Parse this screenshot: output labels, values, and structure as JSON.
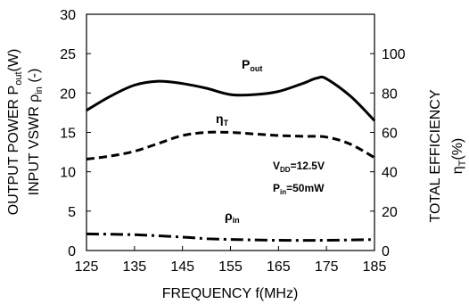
{
  "chart_data": {
    "type": "line",
    "x_axis": {
      "label_main": "FREQUENCY f(MHz)",
      "range": [
        125,
        185
      ],
      "ticks": [
        "125",
        "135",
        "145",
        "155",
        "165",
        "175",
        "185"
      ]
    },
    "y_axis_left": {
      "label_line1_prefix": "OUTPUT POWER P",
      "label_line1_sub": "out",
      "label_line1_suffix": "(W)",
      "label_line2_prefix": "INPUT VSWR ρ",
      "label_line2_sub": "in",
      "label_line2_suffix": " (-)",
      "range": [
        0,
        30
      ],
      "ticks": [
        "0",
        "5",
        "10",
        "15",
        "20",
        "25",
        "30"
      ]
    },
    "y_axis_right": {
      "label_line1": "TOTAL EFFICIENCY",
      "label_line2_prefix": "η",
      "label_line2_sub": "T",
      "label_line2_suffix": "(%)",
      "range": [
        0,
        120
      ],
      "ticks": [
        "0",
        "20",
        "40",
        "60",
        "80",
        "100"
      ]
    },
    "series": [
      {
        "key": "pout",
        "axis": "left",
        "style": "solid",
        "x": [
          125,
          130,
          135,
          140,
          145,
          150,
          155,
          160,
          165,
          170,
          173,
          175,
          180,
          185
        ],
        "y": [
          17.8,
          19.6,
          21.0,
          21.5,
          21.2,
          20.6,
          19.8,
          19.8,
          20.2,
          21.2,
          21.9,
          21.8,
          19.6,
          16.5
        ]
      },
      {
        "key": "eta",
        "axis": "right",
        "style": "dashed",
        "x": [
          125,
          130,
          135,
          140,
          145,
          150,
          155,
          160,
          165,
          170,
          175,
          180,
          185
        ],
        "y": [
          46.4,
          48.0,
          50.4,
          54.4,
          58.4,
          60.0,
          60.0,
          59.2,
          58.4,
          58.0,
          57.6,
          54.0,
          47.2
        ]
      },
      {
        "key": "rho",
        "axis": "left",
        "style": "dashdot",
        "x": [
          125,
          135,
          145,
          150,
          155,
          165,
          175,
          185
        ],
        "y": [
          2.1,
          2.0,
          1.7,
          1.5,
          1.4,
          1.3,
          1.3,
          1.4
        ]
      }
    ],
    "annotations": {
      "pout": {
        "main": "P",
        "sub": "out"
      },
      "eta": {
        "main": "η",
        "sub": "T"
      },
      "rho": {
        "main": "ρ",
        "sub": "in"
      },
      "vdd": {
        "main": "V",
        "sub": "DD",
        "rest": "=12.5V"
      },
      "pin": {
        "main": "P",
        "sub": "in",
        "rest": "=50mW"
      }
    }
  }
}
